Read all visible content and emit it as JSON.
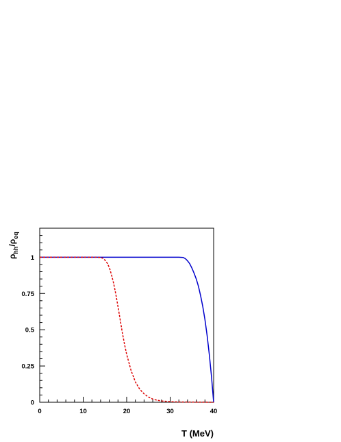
{
  "chart_data": {
    "type": "line",
    "title": "",
    "xlabel": "T (MeV)",
    "ylabel": {
      "main": "ρ",
      "sub1": "hh",
      "sep": "/ρ",
      "sub2": "eq"
    },
    "xlim": [
      0,
      40
    ],
    "ylim": [
      0,
      1.2
    ],
    "x_ticks": [
      0,
      10,
      20,
      30,
      40
    ],
    "x_tick_labels": [
      "0",
      "10",
      "20",
      "30",
      "40"
    ],
    "y_ticks": [
      0,
      0.25,
      0.5,
      0.75,
      1
    ],
    "y_tick_labels": [
      "0",
      "0.25",
      "0.5",
      "0.75",
      "1"
    ],
    "grid": false,
    "legend": "none",
    "series": [
      {
        "color": "#0000cc",
        "style": "solid",
        "x": [
          0,
          5,
          10,
          15,
          20,
          25,
          30,
          32,
          33,
          33.5,
          34,
          34.5,
          35,
          35.5,
          36,
          36.5,
          37,
          37.5,
          38,
          38.5,
          39,
          39.5,
          40
        ],
        "y": [
          1,
          1,
          1,
          1,
          1,
          1,
          1,
          1,
          0.998,
          0.99,
          0.975,
          0.955,
          0.925,
          0.89,
          0.85,
          0.8,
          0.735,
          0.66,
          0.57,
          0.46,
          0.33,
          0.18,
          0.0
        ]
      },
      {
        "color": "#dd0000",
        "style": "dashed",
        "x": [
          0,
          5,
          10,
          13,
          14,
          14.5,
          15,
          15.5,
          16,
          16.5,
          17,
          17.5,
          18,
          18.5,
          19,
          19.5,
          20,
          21,
          22,
          23,
          24,
          25,
          26,
          27,
          28,
          30,
          32,
          35,
          40
        ],
        "y": [
          1,
          1,
          1,
          1,
          0.998,
          0.993,
          0.98,
          0.96,
          0.93,
          0.88,
          0.82,
          0.745,
          0.66,
          0.57,
          0.48,
          0.4,
          0.33,
          0.22,
          0.14,
          0.09,
          0.058,
          0.036,
          0.022,
          0.014,
          0.009,
          0.004,
          0.002,
          0.001,
          0.0
        ]
      }
    ]
  }
}
